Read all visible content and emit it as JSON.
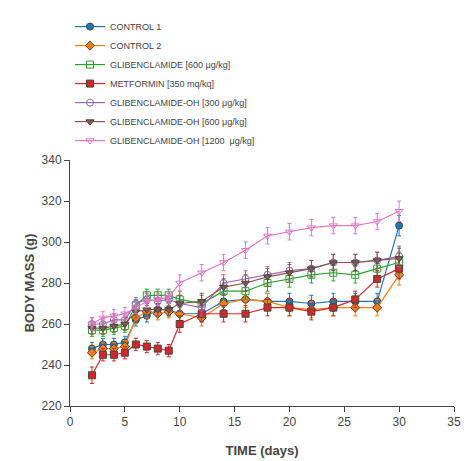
{
  "chart_data": {
    "type": "line",
    "title": "",
    "xlabel": "TIME (days)",
    "ylabel": "BODY MASS (g)",
    "xlim": [
      0,
      35
    ],
    "ylim": [
      220,
      340
    ],
    "xticks": [
      0,
      5,
      10,
      15,
      20,
      25,
      30,
      35
    ],
    "yticks": [
      220,
      240,
      260,
      280,
      300,
      320,
      340
    ],
    "grid": false,
    "legend": "top left",
    "x": [
      2,
      3,
      4,
      5,
      6,
      7,
      8,
      9,
      10,
      12,
      14,
      16,
      18,
      20,
      22,
      24,
      26,
      28,
      30
    ],
    "series": [
      {
        "name": "CONTROL 1",
        "marker": "circle",
        "values": [
          248,
          250,
          250,
          251,
          262,
          264,
          267,
          267,
          265,
          265,
          271,
          272,
          271,
          271,
          270,
          271,
          271,
          271,
          308
        ],
        "errors": [
          3,
          3,
          3,
          3,
          3,
          3,
          3,
          3,
          4,
          4,
          4,
          4,
          4,
          4,
          4,
          4,
          4,
          4,
          5
        ]
      },
      {
        "name": "CONTROL 2",
        "marker": "diamond",
        "values": [
          246,
          248,
          248,
          249,
          263,
          266,
          265,
          266,
          265,
          263,
          270,
          272,
          271,
          268,
          267,
          268,
          268,
          268,
          284
        ],
        "errors": [
          3,
          3,
          3,
          3,
          3,
          3,
          3,
          3,
          4,
          4,
          4,
          4,
          4,
          4,
          4,
          4,
          4,
          4,
          5
        ]
      },
      {
        "name": "GLIBENCLAMIDE [600 μg/kg]",
        "marker": "square-open",
        "values": [
          257,
          257,
          258,
          259,
          269,
          274,
          274,
          274,
          272,
          270,
          276,
          276,
          280,
          282,
          284,
          285,
          284,
          287,
          290
        ],
        "errors": [
          3,
          3,
          3,
          3,
          3,
          3,
          3,
          3,
          4,
          4,
          4,
          4,
          4,
          4,
          4,
          4,
          4,
          4,
          5
        ]
      },
      {
        "name": "METFORMIN [350 mq/kq]",
        "marker": "square",
        "values": [
          235,
          245,
          245,
          246,
          250,
          249,
          248,
          247,
          260,
          265,
          265,
          265,
          268,
          268,
          266,
          268,
          272,
          282,
          287
        ],
        "errors": [
          4,
          3,
          3,
          3,
          3,
          3,
          3,
          3,
          4,
          4,
          4,
          4,
          4,
          4,
          4,
          4,
          4,
          4,
          5
        ]
      },
      {
        "name": "GLIBENCLAMIDE-OH [300 μg/kg]",
        "marker": "circle-open",
        "values": [
          260,
          260,
          262,
          262,
          270,
          272,
          271,
          272,
          270,
          268,
          280,
          282,
          284,
          286,
          287,
          290,
          290,
          291,
          293
        ],
        "errors": [
          3,
          3,
          3,
          3,
          3,
          3,
          3,
          3,
          4,
          4,
          4,
          4,
          4,
          4,
          4,
          4,
          4,
          4,
          5
        ]
      },
      {
        "name": "GLIBENCLAMIDE-OH [600 μg/kg]",
        "marker": "triangle-down",
        "values": [
          258,
          258,
          259,
          260,
          266,
          267,
          267,
          267,
          270,
          271,
          278,
          280,
          283,
          285,
          287,
          290,
          290,
          291,
          292
        ],
        "errors": [
          3,
          3,
          3,
          3,
          3,
          3,
          3,
          3,
          4,
          4,
          4,
          4,
          4,
          4,
          4,
          4,
          4,
          4,
          5
        ]
      },
      {
        "name": "GLIBENCLAMIDE-OH [1200  μg/kg]",
        "marker": "triangle-down-open",
        "values": [
          260,
          263,
          264,
          265,
          268,
          271,
          272,
          273,
          280,
          285,
          290,
          296,
          303,
          305,
          307,
          308,
          308,
          310,
          315
        ],
        "errors": [
          3,
          3,
          3,
          3,
          3,
          3,
          3,
          3,
          4,
          4,
          4,
          4,
          4,
          4,
          4,
          4,
          4,
          4,
          5
        ]
      }
    ]
  }
}
